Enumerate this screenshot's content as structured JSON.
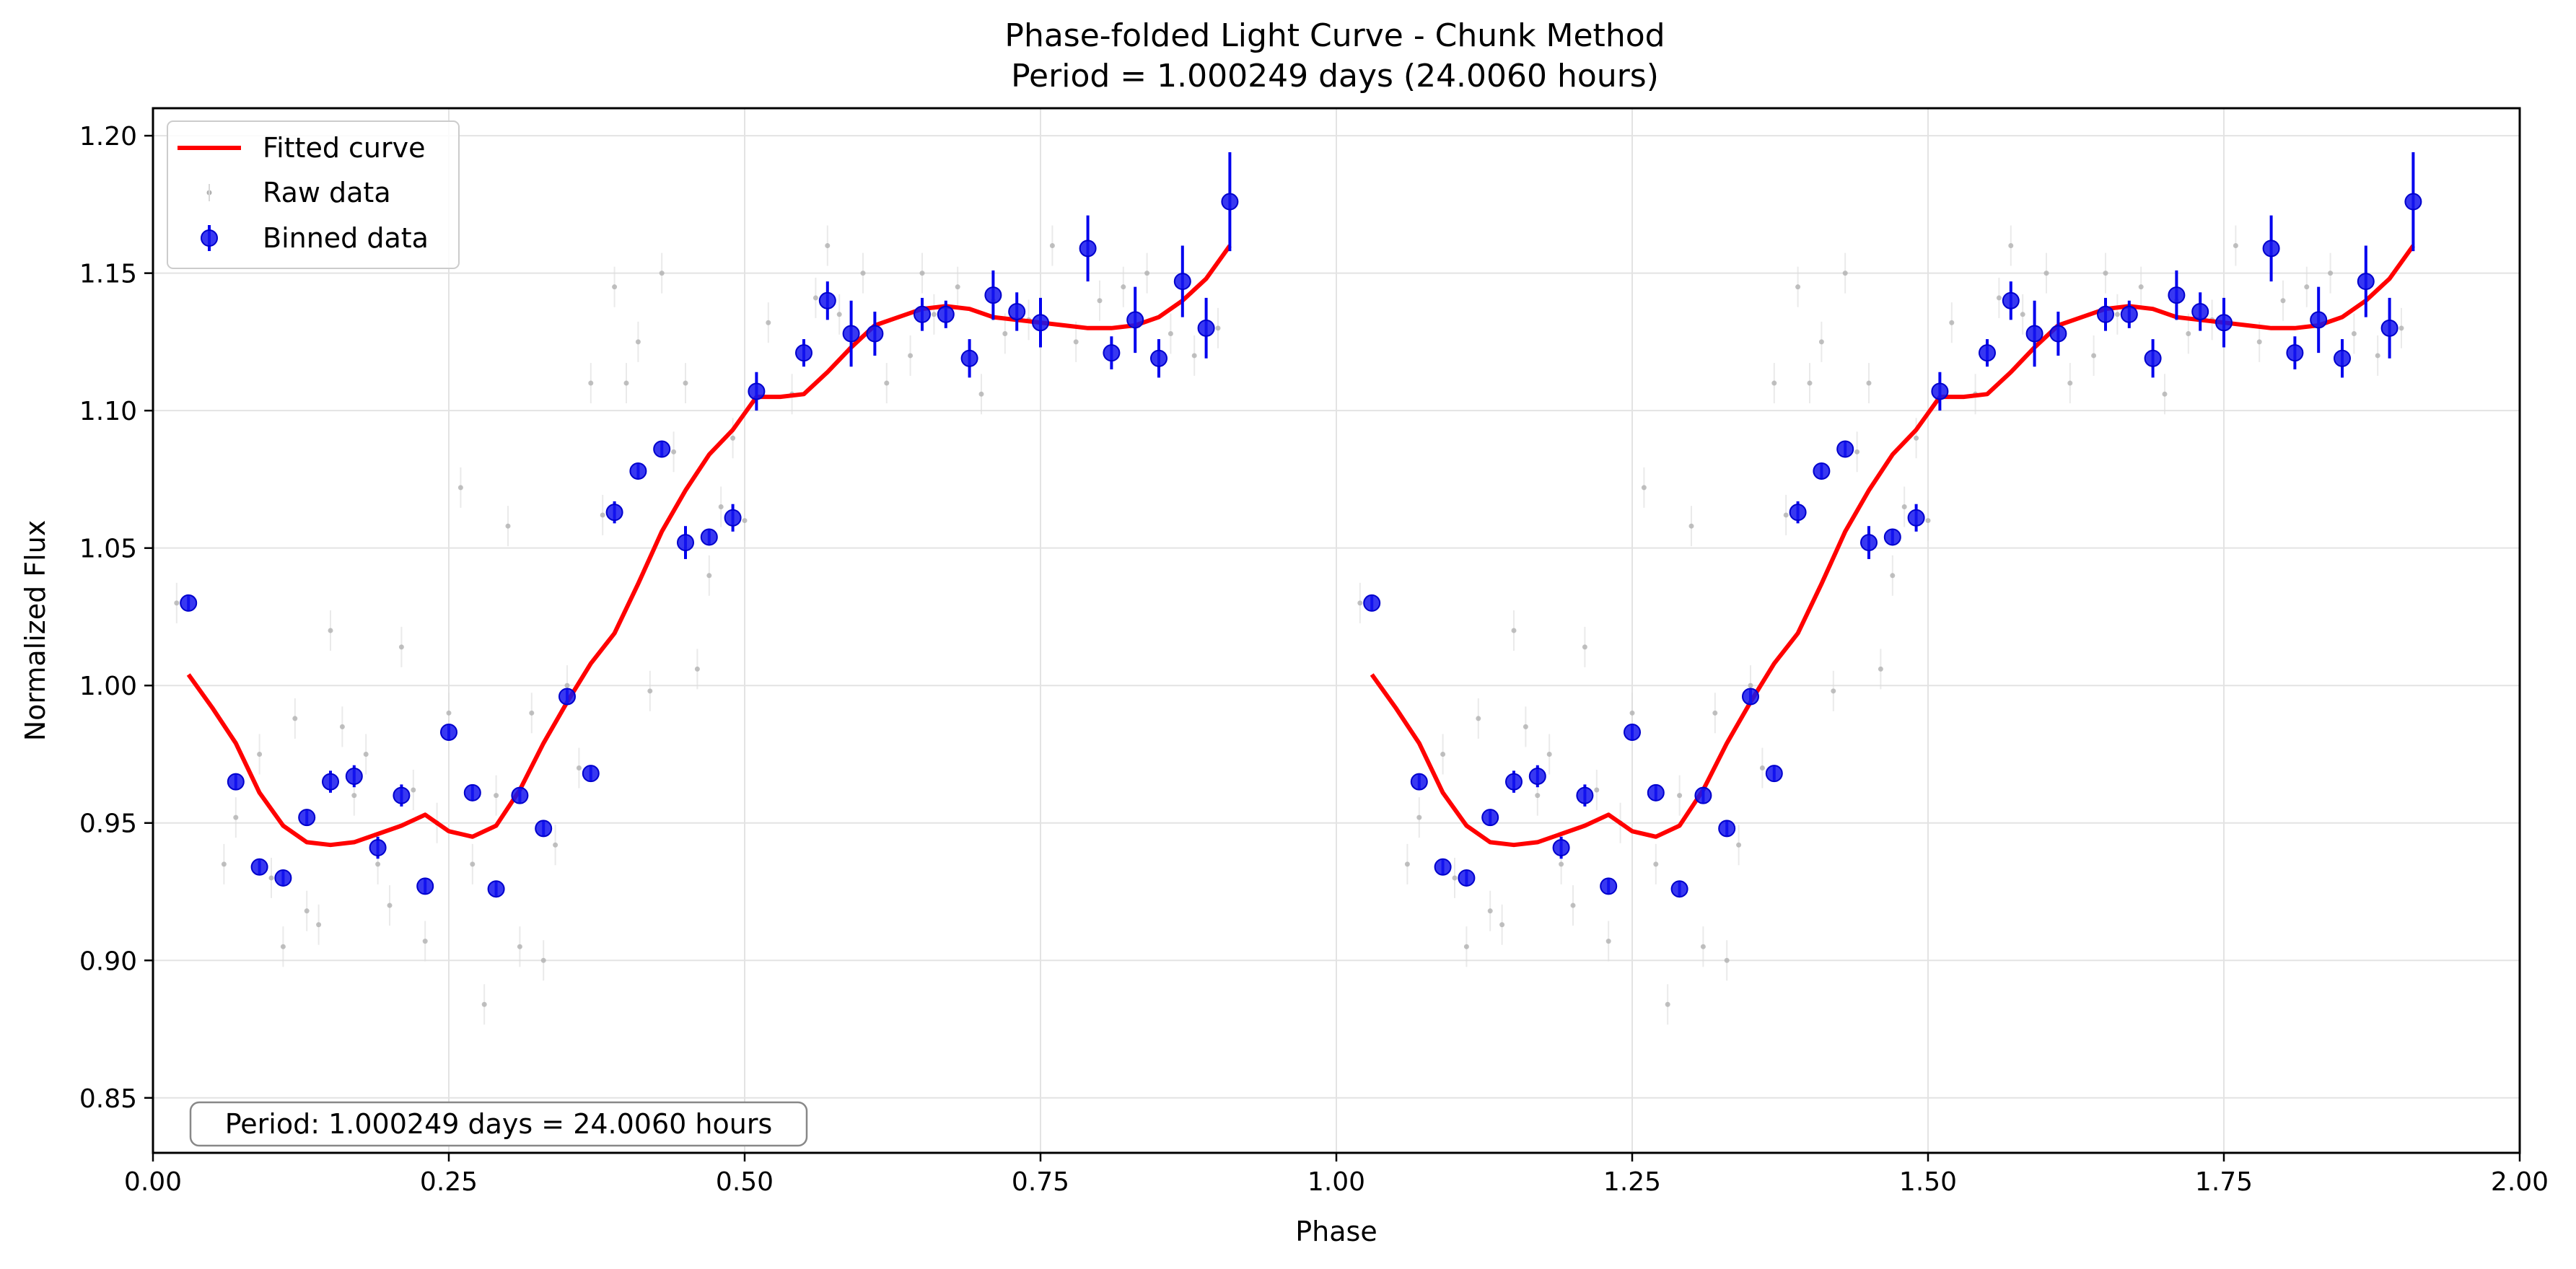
{
  "chart_data": {
    "type": "scatter",
    "title": "Phase-folded Light Curve - Chunk Method",
    "subtitle": "Period = 1.000249 days (24.0060 hours)",
    "xlabel": "Phase",
    "ylabel": "Normalized Flux",
    "xlim": [
      0.0,
      2.0
    ],
    "ylim": [
      0.83,
      1.21
    ],
    "xticks": [
      "0.00",
      "0.25",
      "0.50",
      "0.75",
      "1.00",
      "1.25",
      "1.50",
      "1.75",
      "2.00"
    ],
    "yticks": [
      "0.85",
      "0.90",
      "0.95",
      "1.00",
      "1.05",
      "1.10",
      "1.15",
      "1.20"
    ],
    "grid": true,
    "legend_position": "upper-left",
    "annotation": "Period: 1.000249 days = 24.0060 hours",
    "colors": {
      "fitted": "#ff0000",
      "binned": "#0000ee",
      "raw": "#b0b0b0",
      "grid": "#e3e3e3"
    },
    "series": [
      {
        "name": "Fitted curve",
        "kind": "line",
        "x": [
          0.03,
          0.05,
          0.07,
          0.09,
          0.11,
          0.13,
          0.15,
          0.17,
          0.19,
          0.21,
          0.23,
          0.25,
          0.27,
          0.29,
          0.31,
          0.33,
          0.35,
          0.37,
          0.39,
          0.41,
          0.43,
          0.45,
          0.47,
          0.49,
          0.51,
          0.53,
          0.55,
          0.57,
          0.59,
          0.61,
          0.63,
          0.65,
          0.67,
          0.69,
          0.71,
          0.73,
          0.75,
          0.77,
          0.79,
          0.81,
          0.83,
          0.85,
          0.87,
          0.89,
          0.91
        ],
        "y": [
          1.004,
          0.992,
          0.979,
          0.961,
          0.949,
          0.943,
          0.942,
          0.943,
          0.946,
          0.949,
          0.953,
          0.947,
          0.945,
          0.949,
          0.962,
          0.979,
          0.994,
          1.008,
          1.019,
          1.037,
          1.056,
          1.071,
          1.084,
          1.093,
          1.105,
          1.105,
          1.106,
          1.114,
          1.123,
          1.131,
          1.134,
          1.137,
          1.138,
          1.137,
          1.134,
          1.133,
          1.132,
          1.131,
          1.13,
          1.13,
          1.131,
          1.134,
          1.14,
          1.148,
          1.16
        ]
      },
      {
        "name": "Raw data",
        "kind": "scatter",
        "x": [
          0.02,
          0.06,
          0.07,
          0.09,
          0.1,
          0.11,
          0.12,
          0.13,
          0.14,
          0.15,
          0.16,
          0.17,
          0.18,
          0.19,
          0.2,
          0.21,
          0.22,
          0.23,
          0.24,
          0.25,
          0.26,
          0.27,
          0.28,
          0.29,
          0.3,
          0.31,
          0.32,
          0.33,
          0.34,
          0.35,
          0.36,
          0.37,
          0.38,
          0.39,
          0.4,
          0.41,
          0.42,
          0.43,
          0.44,
          0.45,
          0.46,
          0.47,
          0.48,
          0.49,
          0.5,
          0.52,
          0.54,
          0.56,
          0.57,
          0.58,
          0.6,
          0.62,
          0.64,
          0.65,
          0.66,
          0.68,
          0.7,
          0.71,
          0.72,
          0.74,
          0.76,
          0.78,
          0.8,
          0.82,
          0.84,
          0.86,
          0.88,
          0.9
        ],
        "y": [
          1.03,
          0.935,
          0.952,
          0.975,
          0.93,
          0.905,
          0.988,
          0.918,
          0.913,
          1.02,
          0.985,
          0.96,
          0.975,
          0.935,
          0.92,
          1.014,
          0.962,
          0.907,
          0.95,
          0.99,
          1.072,
          0.935,
          0.884,
          0.96,
          1.058,
          0.905,
          0.99,
          0.9,
          0.942,
          1.0,
          0.97,
          1.11,
          1.062,
          1.145,
          1.11,
          1.125,
          0.998,
          1.15,
          1.085,
          1.11,
          1.006,
          1.04,
          1.065,
          1.09,
          1.06,
          1.132,
          1.106,
          1.141,
          1.16,
          1.135,
          1.15,
          1.11,
          1.12,
          1.15,
          1.135,
          1.145,
          1.106,
          1.14,
          1.128,
          1.133,
          1.16,
          1.125,
          1.14,
          1.145,
          1.15,
          1.128,
          1.12,
          1.13
        ]
      },
      {
        "name": "Binned data",
        "kind": "errorbar",
        "x": [
          0.03,
          0.07,
          0.09,
          0.11,
          0.13,
          0.15,
          0.17,
          0.19,
          0.21,
          0.23,
          0.25,
          0.27,
          0.29,
          0.31,
          0.33,
          0.35,
          0.37,
          0.39,
          0.41,
          0.43,
          0.45,
          0.47,
          0.49,
          0.51,
          0.55,
          0.57,
          0.59,
          0.61,
          0.65,
          0.67,
          0.69,
          0.71,
          0.73,
          0.75,
          0.79,
          0.81,
          0.83,
          0.85,
          0.87,
          0.89,
          0.91
        ],
        "y": [
          1.03,
          0.965,
          0.934,
          0.93,
          0.952,
          0.965,
          0.967,
          0.941,
          0.96,
          0.927,
          0.983,
          0.961,
          0.926,
          0.96,
          0.948,
          0.996,
          0.968,
          1.063,
          1.078,
          1.086,
          1.052,
          1.054,
          1.061,
          1.107,
          1.121,
          1.14,
          1.128,
          1.128,
          1.135,
          1.135,
          1.119,
          1.142,
          1.136,
          1.132,
          1.159,
          1.121,
          1.133,
          1.119,
          1.147,
          1.13,
          1.176
        ],
        "err": [
          0.003,
          0.003,
          0.003,
          0.003,
          0.003,
          0.004,
          0.004,
          0.004,
          0.004,
          0.003,
          0.003,
          0.003,
          0.003,
          0.003,
          0.003,
          0.003,
          0.003,
          0.004,
          0.003,
          0.003,
          0.006,
          0.003,
          0.005,
          0.007,
          0.005,
          0.007,
          0.012,
          0.008,
          0.006,
          0.005,
          0.007,
          0.009,
          0.007,
          0.009,
          0.012,
          0.006,
          0.012,
          0.007,
          0.013,
          0.011,
          0.018
        ]
      }
    ]
  }
}
